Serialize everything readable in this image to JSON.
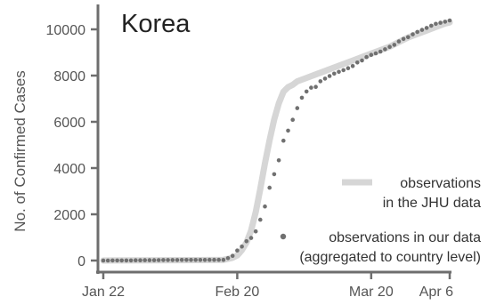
{
  "chart_data": {
    "type": "line",
    "title": "Korea",
    "xlabel": "",
    "ylabel": "No. of Confirmed Cases",
    "x_ticks": [
      "Jan 22",
      "Feb 20",
      "Mar 20",
      "Apr 6"
    ],
    "x_tick_days": [
      0,
      29,
      58,
      75
    ],
    "y_ticks": [
      "0",
      "2000",
      "4000",
      "6000",
      "8000",
      "10000"
    ],
    "y_tick_values": [
      0,
      2000,
      4000,
      6000,
      8000,
      10000
    ],
    "xlim": [
      0,
      75
    ],
    "ylim": [
      0,
      10500
    ],
    "grid": false,
    "legend_position": "bottom-right",
    "series": [
      {
        "name": "observations in the JHU data",
        "style": "thick-line",
        "color": "#d6d6d6",
        "x": [
          0,
          10,
          20,
          26,
          28,
          29,
          30,
          31,
          32,
          33,
          34,
          35,
          36,
          37,
          38,
          39,
          40,
          41,
          42,
          44,
          46,
          48,
          50,
          52,
          54,
          56,
          58,
          60,
          62,
          64,
          66,
          68,
          70,
          72,
          74,
          75
        ],
        "y": [
          0,
          10,
          20,
          30,
          120,
          220,
          450,
          780,
          1300,
          2100,
          3100,
          4200,
          5200,
          6100,
          6800,
          7300,
          7500,
          7600,
          7750,
          7900,
          8050,
          8200,
          8350,
          8500,
          8650,
          8800,
          8950,
          9100,
          9250,
          9450,
          9650,
          9800,
          9950,
          10100,
          10250,
          10300
        ]
      },
      {
        "name": "observations in our data (aggregated to country level)",
        "label_lines": [
          "observations in our data",
          "(aggregated to country level)"
        ],
        "style": "dots",
        "color": "#707070",
        "x": [
          0,
          1,
          2,
          3,
          4,
          5,
          6,
          7,
          8,
          9,
          10,
          11,
          12,
          13,
          14,
          15,
          16,
          17,
          18,
          19,
          20,
          21,
          22,
          23,
          24,
          25,
          26,
          27,
          28,
          29,
          30,
          31,
          32,
          33,
          34,
          35,
          36,
          37,
          38,
          39,
          40,
          41,
          42,
          43,
          44,
          45,
          46,
          47,
          48,
          49,
          50,
          51,
          52,
          53,
          54,
          55,
          56,
          57,
          58,
          59,
          60,
          61,
          62,
          63,
          64,
          65,
          66,
          67,
          68,
          69,
          70,
          71,
          72,
          73,
          74,
          75
        ],
        "y": [
          1,
          1,
          2,
          2,
          3,
          4,
          4,
          11,
          12,
          15,
          15,
          16,
          19,
          23,
          24,
          24,
          25,
          27,
          28,
          28,
          28,
          28,
          28,
          29,
          30,
          31,
          31,
          104,
          204,
          433,
          602,
          833,
          977,
          1261,
          1766,
          2337,
          3150,
          3736,
          4335,
          5186,
          5621,
          6088,
          6593,
          7041,
          7313,
          7478,
          7513,
          7755,
          7869,
          7979,
          8086,
          8162,
          8236,
          8320,
          8413,
          8565,
          8652,
          8799,
          8897,
          8961,
          9037,
          9137,
          9241,
          9332,
          9478,
          9583,
          9661,
          9786,
          9887,
          9976,
          10062,
          10156,
          10237,
          10284,
          10331,
          10384
        ]
      }
    ]
  }
}
